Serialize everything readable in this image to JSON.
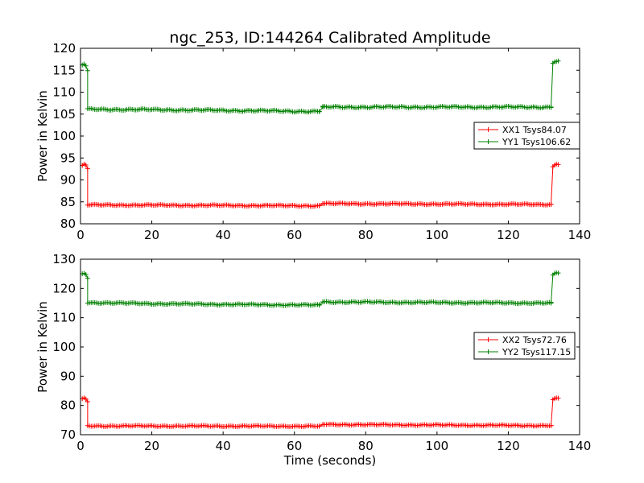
{
  "title": "ngc_253, ID:144264 Calibrated Amplitude",
  "xlabel": "Time (seconds)",
  "colors": {
    "xx": "#ff0000",
    "yy": "#008000"
  },
  "chart_data": [
    {
      "type": "line",
      "ylabel": "Power in Kelvin",
      "xlim": [
        0,
        140
      ],
      "ylim": [
        80,
        120
      ],
      "xticks": [
        0,
        20,
        40,
        60,
        80,
        100,
        120,
        140
      ],
      "yticks": [
        80,
        85,
        90,
        95,
        100,
        105,
        110,
        115,
        120
      ],
      "legend_position": "center-right",
      "series": [
        {
          "name": "XX1 Tsys84.07",
          "color": "#ff0000",
          "marker": "+",
          "segments": [
            {
              "x": [
                0.5,
                1.0,
                1.5,
                2.0
              ],
              "y": [
                93.3,
                93.6,
                93.4,
                92.6
              ]
            },
            {
              "x": [
                2,
                67
              ],
              "y": [
                84.3,
                84.1
              ],
              "fill_noise": 0.15
            },
            {
              "x": [
                67,
                68
              ],
              "y": [
                84.1,
                84.6
              ]
            },
            {
              "x": [
                68,
                132
              ],
              "y": [
                84.6,
                84.4
              ],
              "fill_noise": 0.15
            },
            {
              "x": [
                132,
                132.5,
                133.0,
                133.5,
                134.0
              ],
              "y": [
                84.4,
                93.0,
                93.4,
                93.6,
                93.5
              ]
            }
          ]
        },
        {
          "name": "YY1 Tsys106.62",
          "color": "#008000",
          "marker": "+",
          "segments": [
            {
              "x": [
                0.5,
                1.0,
                1.5,
                2.0
              ],
              "y": [
                116.2,
                116.4,
                116.0,
                114.9
              ]
            },
            {
              "x": [
                2,
                20,
                45,
                67
              ],
              "y": [
                106.1,
                106.0,
                105.8,
                105.6
              ],
              "fill_noise": 0.2
            },
            {
              "x": [
                67,
                68
              ],
              "y": [
                105.6,
                106.6
              ]
            },
            {
              "x": [
                68,
                132
              ],
              "y": [
                106.6,
                106.6
              ],
              "fill_noise": 0.2
            },
            {
              "x": [
                132,
                132.5,
                133.0,
                133.5,
                134.0
              ],
              "y": [
                106.6,
                116.6,
                116.9,
                117.0,
                117.1
              ]
            }
          ]
        }
      ]
    },
    {
      "type": "line",
      "ylabel": "Power in Kelvin",
      "xlim": [
        0,
        140
      ],
      "ylim": [
        70,
        130
      ],
      "xticks": [
        0,
        20,
        40,
        60,
        80,
        100,
        120,
        140
      ],
      "yticks": [
        70,
        80,
        90,
        100,
        110,
        120,
        130
      ],
      "legend_position": "center-right",
      "series": [
        {
          "name": "XX2 Tsys72.76",
          "color": "#ff0000",
          "marker": "+",
          "segments": [
            {
              "x": [
                0.5,
                1.0,
                1.5,
                2.0
              ],
              "y": [
                82.3,
                82.6,
                82.2,
                81.3
              ]
            },
            {
              "x": [
                2,
                67
              ],
              "y": [
                73.0,
                72.9
              ],
              "fill_noise": 0.2
            },
            {
              "x": [
                67,
                68
              ],
              "y": [
                72.9,
                73.5
              ]
            },
            {
              "x": [
                68,
                132
              ],
              "y": [
                73.5,
                73.1
              ],
              "fill_noise": 0.2
            },
            {
              "x": [
                132,
                132.5,
                133.0,
                133.5,
                134.0
              ],
              "y": [
                73.1,
                82.0,
                82.4,
                82.6,
                82.5
              ]
            }
          ]
        },
        {
          "name": "YY2 Tsys117.15",
          "color": "#008000",
          "marker": "+",
          "segments": [
            {
              "x": [
                0.5,
                1.0,
                1.5,
                2.0
              ],
              "y": [
                125.0,
                125.2,
                124.8,
                123.5
              ]
            },
            {
              "x": [
                2,
                20,
                45,
                67
              ],
              "y": [
                115.2,
                114.8,
                114.5,
                114.3
              ],
              "fill_noise": 0.25
            },
            {
              "x": [
                67,
                68
              ],
              "y": [
                114.3,
                115.4
              ]
            },
            {
              "x": [
                68,
                132
              ],
              "y": [
                115.4,
                115.0
              ],
              "fill_noise": 0.25
            },
            {
              "x": [
                132,
                132.5,
                133.0,
                133.5,
                134.0
              ],
              "y": [
                115.0,
                124.6,
                125.2,
                125.4,
                125.3
              ]
            }
          ]
        }
      ]
    }
  ]
}
